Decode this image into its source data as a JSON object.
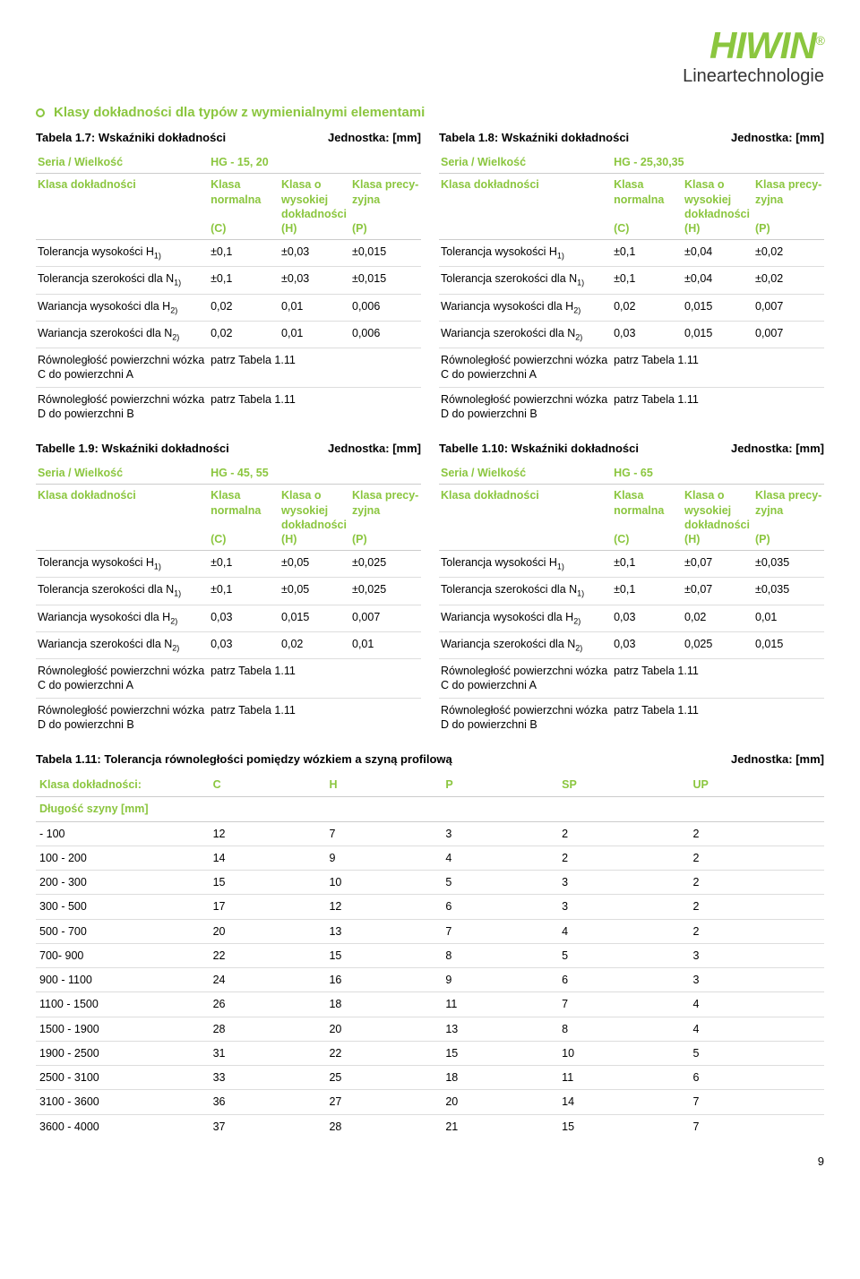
{
  "brand": {
    "name": "HIWIN",
    "reg": "®",
    "subtitle": "Lineartechnologie"
  },
  "section_title": "Klasy dokładności dla typów z wymienialnymi elementami",
  "unit_label": "Jednostka: [mm]",
  "row_labels": {
    "series": "Seria / Wielkość",
    "class": "Klasa dokładności",
    "tolH": "Tolerancja wysokości H",
    "tolN": "Tolerancja szerokości dla N",
    "varH": "Wariancja wysokości dla H",
    "varN": "Wariancja szerokości dla N",
    "parC": "Równoległość powierzchni wózka C do powierzchni A",
    "parD": "Równoległość powierzchni wózka D do powierzchni B",
    "see": "patrz Tabela 1.11"
  },
  "col_heads": {
    "normal": "Klasa normalna",
    "normal_sub": "(C)",
    "high": "Klasa o wysokiej dokładności",
    "high_sub": "(H)",
    "prec": "Klasa precy- zyjna",
    "prec_sub": "(P)"
  },
  "tables": {
    "t17": {
      "title": "Tabela 1.7: Wskaźniki dokładności",
      "series": "HG - 15, 20",
      "tolH": [
        "±0,1",
        "±0,03",
        "±0,015"
      ],
      "tolN": [
        "±0,1",
        "±0,03",
        "±0,015"
      ],
      "varH": [
        "0,02",
        "0,01",
        "0,006"
      ],
      "varN": [
        "0,02",
        "0,01",
        "0,006"
      ]
    },
    "t18": {
      "title": "Tabela 1.8: Wskaźniki dokładności",
      "series": "HG - 25,30,35",
      "tolH": [
        "±0,1",
        "±0,04",
        "±0,02"
      ],
      "tolN": [
        "±0,1",
        "±0,04",
        "±0,02"
      ],
      "varH": [
        "0,02",
        "0,015",
        "0,007"
      ],
      "varN": [
        "0,03",
        "0,015",
        "0,007"
      ]
    },
    "t19": {
      "title": "Tabelle 1.9: Wskaźniki dokładności",
      "series": "HG - 45, 55",
      "tolH": [
        "±0,1",
        "±0,05",
        "±0,025"
      ],
      "tolN": [
        "±0,1",
        "±0,05",
        "±0,025"
      ],
      "varH": [
        "0,03",
        "0,015",
        "0,007"
      ],
      "varN": [
        "0,03",
        "0,02",
        "0,01"
      ]
    },
    "t110": {
      "title": "Tabelle 1.10: Wskaźniki dokładności",
      "series": "HG - 65",
      "tolH": [
        "±0,1",
        "±0,07",
        "±0,035"
      ],
      "tolN": [
        "±0,1",
        "±0,07",
        "±0,035"
      ],
      "varH": [
        "0,03",
        "0,02",
        "0,01"
      ],
      "varN": [
        "0,03",
        "0,025",
        "0,015"
      ]
    }
  },
  "t11": {
    "title": "Tabela 1.11: Tolerancja równoległości pomiędzy wózkiem a szyną profilową",
    "head_class": "Klasa dokładności:",
    "head_len": "Długość szyny [mm]",
    "cols": [
      "C",
      "H",
      "P",
      "SP",
      "UP"
    ],
    "rows": [
      {
        "r": "- 100",
        "v": [
          "12",
          "7",
          "3",
          "2",
          "2"
        ]
      },
      {
        "r": "100 - 200",
        "v": [
          "14",
          "9",
          "4",
          "2",
          "2"
        ]
      },
      {
        "r": "200 - 300",
        "v": [
          "15",
          "10",
          "5",
          "3",
          "2"
        ]
      },
      {
        "r": "300 - 500",
        "v": [
          "17",
          "12",
          "6",
          "3",
          "2"
        ]
      },
      {
        "r": "500 - 700",
        "v": [
          "20",
          "13",
          "7",
          "4",
          "2"
        ]
      },
      {
        "r": "700- 900",
        "v": [
          "22",
          "15",
          "8",
          "5",
          "3"
        ]
      },
      {
        "r": "900 - 1100",
        "v": [
          "24",
          "16",
          "9",
          "6",
          "3"
        ]
      },
      {
        "r": "1100 - 1500",
        "v": [
          "26",
          "18",
          "11",
          "7",
          "4"
        ]
      },
      {
        "r": "1500 - 1900",
        "v": [
          "28",
          "20",
          "13",
          "8",
          "4"
        ]
      },
      {
        "r": "1900 - 2500",
        "v": [
          "31",
          "22",
          "15",
          "10",
          "5"
        ]
      },
      {
        "r": "2500 - 3100",
        "v": [
          "33",
          "25",
          "18",
          "11",
          "6"
        ]
      },
      {
        "r": "3100 - 3600",
        "v": [
          "36",
          "27",
          "20",
          "14",
          "7"
        ]
      },
      {
        "r": "3600 - 4000",
        "v": [
          "37",
          "28",
          "21",
          "15",
          "7"
        ]
      }
    ]
  },
  "page_num": "9"
}
